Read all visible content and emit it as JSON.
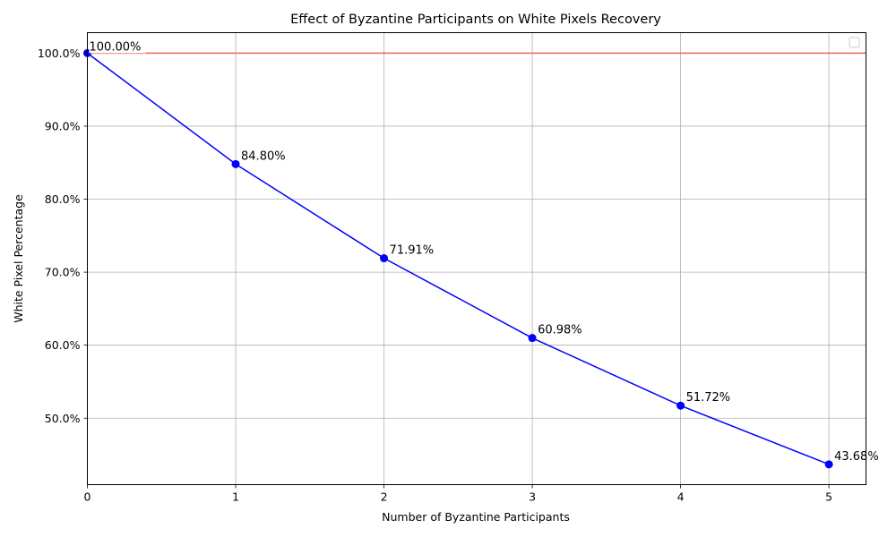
{
  "chart_data": {
    "type": "line",
    "title": "Effect of Byzantine Participants on White Pixels Recovery",
    "xlabel": "Number of Byzantine Participants",
    "ylabel": "White Pixel Percentage",
    "x": [
      0,
      1,
      2,
      3,
      4,
      5
    ],
    "series": [
      {
        "values": [
          100.0,
          84.8,
          71.91,
          60.98,
          51.72,
          43.68
        ],
        "color": "#0000ff",
        "marker": "circle",
        "labels": [
          "100.00%",
          "84.80%",
          "71.91%",
          "60.98%",
          "51.72%",
          "43.68%"
        ]
      }
    ],
    "reference_line": {
      "y": 100.0,
      "color": "#e8675e"
    },
    "xlim": [
      0,
      5.25
    ],
    "ylim": [
      40.9,
      102.8
    ],
    "xticks": [
      0,
      1,
      2,
      3,
      4,
      5
    ],
    "xtick_labels": [
      "0",
      "1",
      "2",
      "3",
      "4",
      "5"
    ],
    "yticks": [
      50,
      60,
      70,
      80,
      90,
      100
    ],
    "ytick_labels": [
      "50.0%",
      "60.0%",
      "70.0%",
      "80.0%",
      "90.0%",
      "100.0%"
    ],
    "grid": true,
    "legend": "top-right, empty"
  }
}
